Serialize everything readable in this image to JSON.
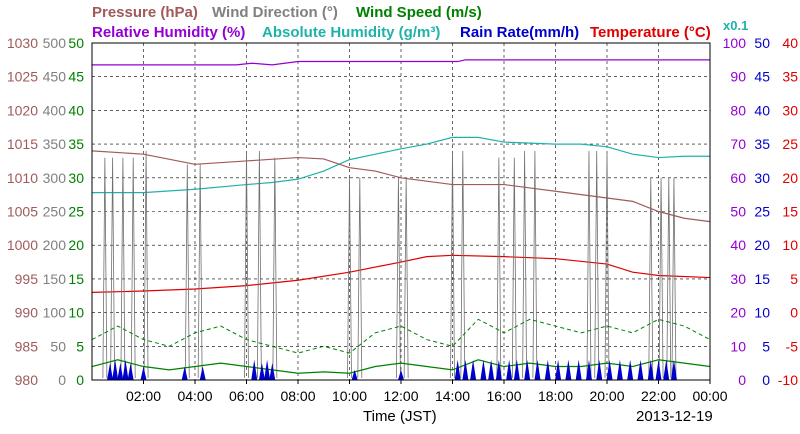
{
  "header": {
    "row1": [
      {
        "text": "Pressure (hPa)",
        "color": "#a05a5a"
      },
      {
        "text": "Wind Direction (°)",
        "color": "#808080"
      },
      {
        "text": "Wind Speed (m/s)",
        "color": "#008000"
      }
    ],
    "row2": [
      {
        "text": "Relative Humidity (%)",
        "color": "#9400d3"
      },
      {
        "text": "Absolute Humidity (g/m³)",
        "color": "#20b2aa"
      },
      {
        "text": "Rain Rate(mm/h)",
        "color": "#0000cc"
      },
      {
        "text": "Temperature (°C)",
        "color": "#e00000"
      },
      {
        "text": "x0.1",
        "color": "#20b2aa"
      }
    ]
  },
  "xlabel": "Time (JST)",
  "date": "2013-12-19",
  "chart_data": {
    "type": "line",
    "x_ticks": [
      "02:00",
      "04:00",
      "06:00",
      "08:00",
      "10:00",
      "12:00",
      "14:00",
      "16:00",
      "18:00",
      "20:00",
      "22:00",
      "00:00"
    ],
    "xlim_hours": [
      0,
      24
    ],
    "axes": {
      "pressure": {
        "ticks": [
          980,
          985,
          990,
          995,
          1000,
          1005,
          1010,
          1015,
          1020,
          1025,
          1030
        ],
        "color": "#a05a5a",
        "ylim": [
          980,
          1030
        ]
      },
      "wind_direction": {
        "ticks": [
          0,
          50,
          100,
          150,
          200,
          250,
          300,
          350,
          400,
          450,
          500
        ],
        "color": "#808080",
        "ylim": [
          0,
          500
        ]
      },
      "wind_speed": {
        "ticks": [
          0,
          5,
          10,
          15,
          20,
          25,
          30,
          35,
          40,
          45,
          50
        ],
        "color": "#008000",
        "ylim": [
          0,
          50
        ]
      },
      "relative_humidity": {
        "ticks": [
          0,
          10,
          20,
          30,
          40,
          50,
          60,
          70,
          80,
          90,
          100
        ],
        "color": "#9400d3",
        "ylim": [
          0,
          100
        ]
      },
      "rain_rate": {
        "ticks": [
          0,
          5,
          10,
          15,
          20,
          25,
          30,
          35,
          40,
          45,
          50
        ],
        "color": "#0000cc",
        "ylim": [
          0,
          50
        ]
      },
      "temperature": {
        "ticks": [
          -10,
          -5,
          0,
          5,
          10,
          15,
          20,
          25,
          30,
          35,
          40
        ],
        "color": "#e00000",
        "ylim": [
          -10,
          40
        ]
      }
    },
    "series": [
      {
        "name": "Relative Humidity",
        "axis": "relative_humidity",
        "color": "#9400d3",
        "x": [
          0,
          2,
          4,
          5.6,
          6.2,
          7,
          8,
          10,
          13,
          14.2,
          14.5,
          16,
          20,
          24
        ],
        "y": [
          93.5,
          93.5,
          93.5,
          93.5,
          94,
          93.5,
          94.5,
          94.5,
          94.5,
          94.5,
          95,
          95,
          95,
          95
        ]
      },
      {
        "name": "Absolute Humidity",
        "axis": "absolute_humidity_x0.1",
        "color": "#20b2aa",
        "x": [
          0,
          2,
          4,
          6,
          7,
          8,
          9,
          10,
          11,
          12,
          13,
          14,
          15,
          16,
          18,
          19,
          20,
          21,
          22,
          23,
          24
        ],
        "y": [
          27.8,
          27.8,
          28.3,
          29,
          29.3,
          29.8,
          31,
          32.7,
          33.5,
          34.3,
          35,
          36,
          36,
          35.3,
          35,
          35,
          34.6,
          33.5,
          33,
          33.2,
          33.2
        ]
      },
      {
        "name": "Pressure",
        "axis": "pressure",
        "color": "#a05a5a",
        "x": [
          0,
          2,
          4,
          6,
          8,
          9,
          10,
          11,
          12,
          13,
          14,
          16,
          17,
          18,
          20,
          21,
          22,
          23,
          24
        ],
        "y": [
          1014,
          1013.5,
          1012,
          1012.5,
          1013,
          1012.8,
          1011.5,
          1011,
          1010,
          1009.5,
          1009,
          1009,
          1008.5,
          1008,
          1007,
          1006.5,
          1005,
          1004,
          1003.5
        ]
      },
      {
        "name": "Temperature",
        "axis": "temperature",
        "color": "#e00000",
        "x": [
          0,
          2,
          4,
          6,
          8,
          10,
          12,
          13,
          14,
          16,
          18,
          20,
          21,
          22,
          24
        ],
        "y": [
          3,
          3.2,
          3.5,
          4,
          4.8,
          6,
          7.5,
          8.3,
          8.5,
          8.3,
          8,
          7.2,
          6,
          5.5,
          5.2
        ]
      },
      {
        "name": "Wind Direction",
        "axis": "wind_direction",
        "color": "#707070",
        "spikes_x": [
          0.5,
          0.8,
          1.2,
          1.6,
          2.1,
          3.7,
          4.2,
          6.0,
          6.5,
          7.1,
          10.0,
          10.4,
          11.9,
          12.2,
          14.0,
          14.4,
          15.8,
          16.4,
          16.8,
          17.2,
          19.3,
          19.6,
          20.0,
          21.7,
          22.1,
          22.4,
          22.6
        ],
        "spikes_y": [
          330,
          330,
          330,
          330,
          340,
          320,
          320,
          340,
          340,
          330,
          300,
          300,
          300,
          300,
          340,
          340,
          330,
          330,
          340,
          340,
          340,
          340,
          340,
          300,
          300,
          300,
          300
        ]
      },
      {
        "name": "Wind Speed",
        "axis": "wind_speed",
        "color": "#008000",
        "x": [
          0,
          1,
          2,
          3,
          4,
          5,
          6,
          7,
          8,
          9,
          10,
          11,
          12,
          13,
          14,
          15,
          16,
          17,
          18,
          19,
          20,
          21,
          22,
          23,
          24
        ],
        "y": [
          2,
          3,
          2,
          1.5,
          2,
          2.5,
          2,
          1.5,
          1,
          1.2,
          1,
          2,
          2.5,
          2,
          1.5,
          3,
          2,
          2.5,
          2,
          2,
          2.5,
          2,
          3,
          2.5,
          2
        ],
        "gust_y": [
          6,
          8,
          6,
          5,
          7,
          8,
          6,
          5,
          4,
          5,
          4,
          7,
          8,
          6,
          5,
          9,
          7,
          9,
          8,
          7,
          8,
          7,
          9,
          8,
          6
        ]
      },
      {
        "name": "Rain Rate",
        "axis": "rain_rate",
        "color": "#0000cc",
        "bursts_x": [
          0.7,
          0.9,
          1.1,
          1.3,
          1.5,
          2.0,
          3.6,
          4.3,
          6.3,
          6.6,
          6.8,
          7.0,
          10.2,
          12.0,
          14.2,
          14.5,
          14.8,
          15.2,
          15.5,
          15.8,
          16.2,
          16.5,
          16.9,
          17.3,
          17.7,
          18.1,
          18.5,
          18.9,
          19.3,
          19.7,
          20.1,
          20.5,
          20.9,
          21.3,
          21.7,
          22.0,
          22.3,
          22.6
        ],
        "bursts_y": [
          2.5,
          3,
          2.5,
          3,
          2.5,
          2,
          2,
          2,
          3,
          2.5,
          3,
          2.5,
          1.5,
          1.5,
          3,
          3,
          3,
          3,
          3,
          3,
          3,
          3,
          3,
          3,
          3,
          3,
          3,
          3,
          3,
          3,
          3,
          3,
          3,
          3,
          3,
          3,
          3,
          3
        ]
      }
    ]
  }
}
